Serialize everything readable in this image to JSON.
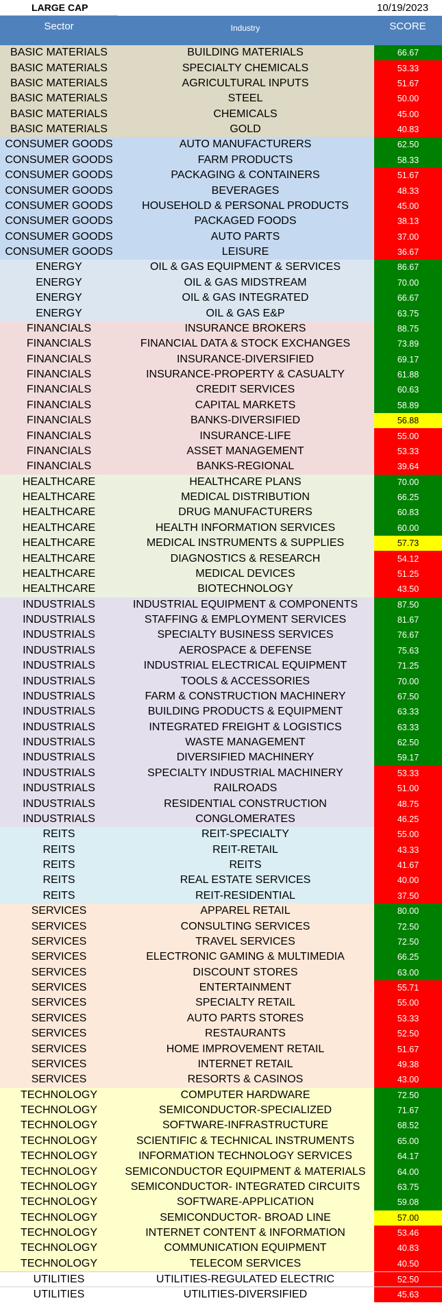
{
  "title": "LARGE CAP",
  "date": "10/19/2023",
  "header": {
    "sector": "Sector",
    "industry": "Industry",
    "score": "SCORE"
  },
  "colors": {
    "header": "#4f81bd",
    "green": "#008000",
    "red": "#ff0000",
    "yellow": "#ffff00",
    "BASIC MATERIALS": "#ddd9c4",
    "CONSUMER GOODS": "#c5d9f1",
    "ENERGY": "#dce6f1",
    "FINANCIALS": "#f2dcdb",
    "HEALTHCARE": "#ebf1de",
    "INDUSTRIALS": "#e4dfec",
    "REITS": "#daeef3",
    "SERVICES": "#fde9d9",
    "TECHNOLOGY": "#ffffcc",
    "UTILITIES": "#ffffff"
  },
  "rows": [
    {
      "sector": "BASIC MATERIALS",
      "industry": "BUILDING MATERIALS",
      "score": "66.67",
      "status": "green"
    },
    {
      "sector": "BASIC MATERIALS",
      "industry": "SPECIALTY CHEMICALS",
      "score": "53.33",
      "status": "red"
    },
    {
      "sector": "BASIC MATERIALS",
      "industry": "AGRICULTURAL INPUTS",
      "score": "51.67",
      "status": "red"
    },
    {
      "sector": "BASIC MATERIALS",
      "industry": "STEEL",
      "score": "50.00",
      "status": "red"
    },
    {
      "sector": "BASIC MATERIALS",
      "industry": "CHEMICALS",
      "score": "45.00",
      "status": "red"
    },
    {
      "sector": "BASIC MATERIALS",
      "industry": "GOLD",
      "score": "40.83",
      "status": "red"
    },
    {
      "sector": "CONSUMER GOODS",
      "industry": "AUTO MANUFACTURERS",
      "score": "62.50",
      "status": "green"
    },
    {
      "sector": "CONSUMER GOODS",
      "industry": "FARM PRODUCTS",
      "score": "58.33",
      "status": "green"
    },
    {
      "sector": "CONSUMER GOODS",
      "industry": "PACKAGING & CONTAINERS",
      "score": "51.67",
      "status": "red"
    },
    {
      "sector": "CONSUMER GOODS",
      "industry": "BEVERAGES",
      "score": "48.33",
      "status": "red"
    },
    {
      "sector": "CONSUMER GOODS",
      "industry": "HOUSEHOLD & PERSONAL PRODUCTS",
      "score": "45.00",
      "status": "red"
    },
    {
      "sector": "CONSUMER GOODS",
      "industry": "PACKAGED FOODS",
      "score": "38.13",
      "status": "red"
    },
    {
      "sector": "CONSUMER GOODS",
      "industry": "AUTO PARTS",
      "score": "37.00",
      "status": "red"
    },
    {
      "sector": "CONSUMER GOODS",
      "industry": "LEISURE",
      "score": "36.67",
      "status": "red"
    },
    {
      "sector": "ENERGY",
      "industry": "OIL & GAS EQUIPMENT & SERVICES",
      "score": "86.67",
      "status": "green"
    },
    {
      "sector": "ENERGY",
      "industry": "OIL & GAS MIDSTREAM",
      "score": "70.00",
      "status": "green"
    },
    {
      "sector": "ENERGY",
      "industry": "OIL & GAS INTEGRATED",
      "score": "66.67",
      "status": "green"
    },
    {
      "sector": "ENERGY",
      "industry": "OIL & GAS E&P",
      "score": "63.75",
      "status": "green"
    },
    {
      "sector": "FINANCIALS",
      "industry": "INSURANCE BROKERS",
      "score": "88.75",
      "status": "green"
    },
    {
      "sector": "FINANCIALS",
      "industry": "FINANCIAL DATA & STOCK EXCHANGES",
      "score": "73.89",
      "status": "green"
    },
    {
      "sector": "FINANCIALS",
      "industry": "INSURANCE-DIVERSIFIED",
      "score": "69.17",
      "status": "green"
    },
    {
      "sector": "FINANCIALS",
      "industry": "INSURANCE-PROPERTY & CASUALTY",
      "score": "61.88",
      "status": "green"
    },
    {
      "sector": "FINANCIALS",
      "industry": "CREDIT SERVICES",
      "score": "60.63",
      "status": "green"
    },
    {
      "sector": "FINANCIALS",
      "industry": "CAPITAL MARKETS",
      "score": "58.89",
      "status": "green"
    },
    {
      "sector": "FINANCIALS",
      "industry": "BANKS-DIVERSIFIED",
      "score": "56.88",
      "status": "yellow"
    },
    {
      "sector": "FINANCIALS",
      "industry": "INSURANCE-LIFE",
      "score": "55.00",
      "status": "red"
    },
    {
      "sector": "FINANCIALS",
      "industry": "ASSET MANAGEMENT",
      "score": "53.33",
      "status": "red"
    },
    {
      "sector": "FINANCIALS",
      "industry": "BANKS-REGIONAL",
      "score": "39.64",
      "status": "red"
    },
    {
      "sector": "HEALTHCARE",
      "industry": "HEALTHCARE PLANS",
      "score": "70.00",
      "status": "green"
    },
    {
      "sector": "HEALTHCARE",
      "industry": "MEDICAL DISTRIBUTION",
      "score": "66.25",
      "status": "green"
    },
    {
      "sector": "HEALTHCARE",
      "industry": "DRUG MANUFACTURERS",
      "score": "60.83",
      "status": "green"
    },
    {
      "sector": "HEALTHCARE",
      "industry": "HEALTH INFORMATION SERVICES",
      "score": "60.00",
      "status": "green"
    },
    {
      "sector": "HEALTHCARE",
      "industry": "MEDICAL INSTRUMENTS & SUPPLIES",
      "score": "57.73",
      "status": "yellow"
    },
    {
      "sector": "HEALTHCARE",
      "industry": "DIAGNOSTICS & RESEARCH",
      "score": "54.12",
      "status": "red"
    },
    {
      "sector": "HEALTHCARE",
      "industry": "MEDICAL DEVICES",
      "score": "51.25",
      "status": "red"
    },
    {
      "sector": "HEALTHCARE",
      "industry": "BIOTECHNOLOGY",
      "score": "43.50",
      "status": "red"
    },
    {
      "sector": "INDUSTRIALS",
      "industry": "INDUSTRIAL EQUIPMENT & COMPONENTS",
      "score": "87.50",
      "status": "green"
    },
    {
      "sector": "INDUSTRIALS",
      "industry": "STAFFING & EMPLOYMENT SERVICES",
      "score": "81.67",
      "status": "green"
    },
    {
      "sector": "INDUSTRIALS",
      "industry": "SPECIALTY BUSINESS SERVICES",
      "score": "76.67",
      "status": "green"
    },
    {
      "sector": "INDUSTRIALS",
      "industry": "AEROSPACE & DEFENSE",
      "score": "75.63",
      "status": "green"
    },
    {
      "sector": "INDUSTRIALS",
      "industry": "INDUSTRIAL ELECTRICAL EQUIPMENT",
      "score": "71.25",
      "status": "green"
    },
    {
      "sector": "INDUSTRIALS",
      "industry": "TOOLS & ACCESSORIES",
      "score": "70.00",
      "status": "green"
    },
    {
      "sector": "INDUSTRIALS",
      "industry": "FARM & CONSTRUCTION MACHINERY",
      "score": "67.50",
      "status": "green"
    },
    {
      "sector": "INDUSTRIALS",
      "industry": "BUILDING PRODUCTS &  EQUIPMENT",
      "score": "63.33",
      "status": "green"
    },
    {
      "sector": "INDUSTRIALS",
      "industry": "INTEGRATED FREIGHT & LOGISTICS",
      "score": "63.33",
      "status": "green"
    },
    {
      "sector": "INDUSTRIALS",
      "industry": "WASTE MANAGEMENT",
      "score": "62.50",
      "status": "green"
    },
    {
      "sector": "INDUSTRIALS",
      "industry": "DIVERSIFIED MACHINERY",
      "score": "59.17",
      "status": "green"
    },
    {
      "sector": "INDUSTRIALS",
      "industry": "SPECIALTY INDUSTRIAL MACHINERY",
      "score": "53.33",
      "status": "red"
    },
    {
      "sector": "INDUSTRIALS",
      "industry": "RAILROADS",
      "score": "51.00",
      "status": "red"
    },
    {
      "sector": "INDUSTRIALS",
      "industry": "RESIDENTIAL CONSTRUCTION",
      "score": "48.75",
      "status": "red"
    },
    {
      "sector": "INDUSTRIALS",
      "industry": "CONGLOMERATES",
      "score": "46.25",
      "status": "red"
    },
    {
      "sector": "REITS",
      "industry": "REIT-SPECIALTY",
      "score": "55.00",
      "status": "red"
    },
    {
      "sector": "REITS",
      "industry": "REIT-RETAIL",
      "score": "43.33",
      "status": "red"
    },
    {
      "sector": "REITS",
      "industry": "REITS",
      "score": "41.67",
      "status": "red"
    },
    {
      "sector": "REITS",
      "industry": "REAL ESTATE SERVICES",
      "score": "40.00",
      "status": "red"
    },
    {
      "sector": "REITS",
      "industry": "REIT-RESIDENTIAL",
      "score": "37.50",
      "status": "red"
    },
    {
      "sector": "SERVICES",
      "industry": "APPAREL RETAIL",
      "score": "80.00",
      "status": "green"
    },
    {
      "sector": "SERVICES",
      "industry": "CONSULTING SERVICES",
      "score": "72.50",
      "status": "green"
    },
    {
      "sector": "SERVICES",
      "industry": "TRAVEL SERVICES",
      "score": "72.50",
      "status": "green"
    },
    {
      "sector": "SERVICES",
      "industry": "ELECTRONIC GAMING & MULTIMEDIA",
      "score": "66.25",
      "status": "green"
    },
    {
      "sector": "SERVICES",
      "industry": "DISCOUNT STORES",
      "score": "63.00",
      "status": "green"
    },
    {
      "sector": "SERVICES",
      "industry": "ENTERTAINMENT",
      "score": "55.71",
      "status": "red"
    },
    {
      "sector": "SERVICES",
      "industry": "SPECIALTY RETAIL",
      "score": "55.00",
      "status": "red"
    },
    {
      "sector": "SERVICES",
      "industry": "AUTO PARTS STORES",
      "score": "53.33",
      "status": "red"
    },
    {
      "sector": "SERVICES",
      "industry": "RESTAURANTS",
      "score": "52.50",
      "status": "red"
    },
    {
      "sector": "SERVICES",
      "industry": "HOME IMPROVEMENT RETAIL",
      "score": "51.67",
      "status": "red"
    },
    {
      "sector": "SERVICES",
      "industry": "INTERNET RETAIL",
      "score": "49.38",
      "status": "red"
    },
    {
      "sector": "SERVICES",
      "industry": "RESORTS & CASINOS",
      "score": "43.00",
      "status": "red"
    },
    {
      "sector": "TECHNOLOGY",
      "industry": "COMPUTER HARDWARE",
      "score": "72.50",
      "status": "green"
    },
    {
      "sector": "TECHNOLOGY",
      "industry": "SEMICONDUCTOR-SPECIALIZED",
      "score": "71.67",
      "status": "green"
    },
    {
      "sector": "TECHNOLOGY",
      "industry": "SOFTWARE-INFRASTRUCTURE",
      "score": "68.52",
      "status": "green"
    },
    {
      "sector": "TECHNOLOGY",
      "industry": "SCIENTIFIC & TECHNICAL INSTRUMENTS",
      "score": "65.00",
      "status": "green"
    },
    {
      "sector": "TECHNOLOGY",
      "industry": "INFORMATION TECHNOLOGY SERVICES",
      "score": "64.17",
      "status": "green"
    },
    {
      "sector": "TECHNOLOGY",
      "industry": "SEMICONDUCTOR EQUIPMENT & MATERIALS",
      "score": "64.00",
      "status": "green"
    },
    {
      "sector": "TECHNOLOGY",
      "industry": "SEMICONDUCTOR- INTEGRATED CIRCUITS",
      "score": "63.75",
      "status": "green"
    },
    {
      "sector": "TECHNOLOGY",
      "industry": "SOFTWARE-APPLICATION",
      "score": "59.08",
      "status": "green"
    },
    {
      "sector": "TECHNOLOGY",
      "industry": "SEMICONDUCTOR- BROAD LINE",
      "score": "57.00",
      "status": "yellow"
    },
    {
      "sector": "TECHNOLOGY",
      "industry": "INTERNET CONTENT & INFORMATION",
      "score": "53.46",
      "status": "red"
    },
    {
      "sector": "TECHNOLOGY",
      "industry": "COMMUNICATION EQUIPMENT",
      "score": "40.83",
      "status": "red"
    },
    {
      "sector": "TECHNOLOGY",
      "industry": "TELECOM SERVICES",
      "score": "40.50",
      "status": "red"
    },
    {
      "sector": "UTILITIES",
      "industry": "UTILITIES-REGULATED ELECTRIC",
      "score": "52.50",
      "status": "red"
    },
    {
      "sector": "UTILITIES",
      "industry": "UTILITIES-DIVERSIFIED",
      "score": "45.63",
      "status": "red"
    }
  ]
}
